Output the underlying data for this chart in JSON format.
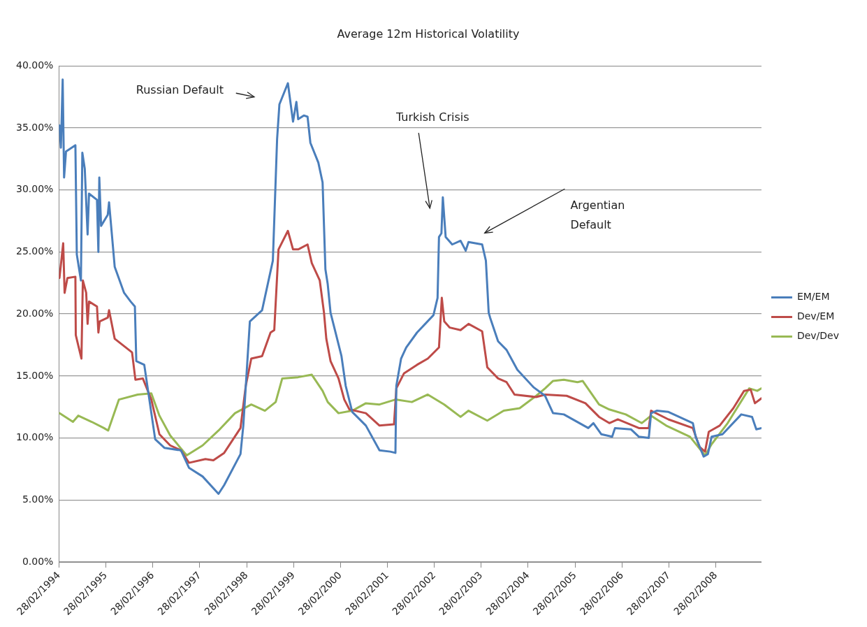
{
  "chart_data": {
    "type": "line",
    "title": "Average 12m Historical Volatility",
    "xlim": [
      "1994-02-28",
      "2009-02-17"
    ],
    "xticks": [
      {
        "value": "1994-02-28",
        "label": "28/02/1994"
      },
      {
        "value": "1995-02-28",
        "label": "28/02/1995"
      },
      {
        "value": "1996-02-28",
        "label": "28/02/1996"
      },
      {
        "value": "1997-02-28",
        "label": "28/02/1997"
      },
      {
        "value": "1998-02-28",
        "label": "28/02/1998"
      },
      {
        "value": "1999-02-28",
        "label": "28/02/1999"
      },
      {
        "value": "2000-02-28",
        "label": "28/02/2000"
      },
      {
        "value": "2001-02-28",
        "label": "28/02/2001"
      },
      {
        "value": "2002-02-28",
        "label": "28/02/2002"
      },
      {
        "value": "2003-02-28",
        "label": "28/02/2003"
      },
      {
        "value": "2004-02-28",
        "label": "28/02/2004"
      },
      {
        "value": "2005-02-28",
        "label": "28/02/2005"
      },
      {
        "value": "2006-02-28",
        "label": "28/02/2006"
      },
      {
        "value": "2007-02-28",
        "label": "28/02/2007"
      },
      {
        "value": "2008-02-28",
        "label": "28/02/2008"
      }
    ],
    "ylim": [
      0,
      40
    ],
    "yticks": [
      {
        "value": 0,
        "label": "0.00%"
      },
      {
        "value": 5,
        "label": "5.00%"
      },
      {
        "value": 10,
        "label": "10.00%"
      },
      {
        "value": 15,
        "label": "15.00%"
      },
      {
        "value": 20,
        "label": "20.00%"
      },
      {
        "value": 25,
        "label": "25.00%"
      },
      {
        "value": 30,
        "label": "30.00%"
      },
      {
        "value": 35,
        "label": "35.00%"
      },
      {
        "value": 40,
        "label": "40.00%"
      }
    ],
    "grid": "y",
    "legend": "right",
    "marker": "none",
    "line_style": "solid",
    "series": [
      {
        "name": "EM/EM",
        "color": "#4a7ebb",
        "x": [
          "1994-03-04",
          "1994-03-15",
          "1994-03-29",
          "1994-04-09",
          "1994-04-24",
          "1994-07-06",
          "1994-07-17",
          "1994-08-18",
          "1994-08-29",
          "1994-09-17",
          "1994-10-09",
          "1994-10-20",
          "1994-12-21",
          "1995-01-01",
          "1995-01-08",
          "1995-01-22",
          "1995-03-15",
          "1995-03-25",
          "1995-05-08",
          "1995-07-20",
          "1995-09-09",
          "1995-10-12",
          "1995-10-23",
          "1995-12-24",
          "1996-03-18",
          "1996-05-30",
          "1996-10-05",
          "1996-12-06",
          "1997-03-22",
          "1997-07-24",
          "1997-09-06",
          "1998-01-11",
          "1998-02-02",
          "1998-03-25",
          "1998-06-28",
          "1998-09-20",
          "1998-10-23",
          "1998-11-10",
          "1999-01-15",
          "1999-02-24",
          "1999-03-22",
          "1999-04-05",
          "1999-05-19",
          "1999-06-17",
          "1999-07-09",
          "1999-09-09",
          "1999-10-12",
          "1999-10-23",
          "1999-11-03",
          "1999-11-21",
          "1999-12-13",
          "2000-01-26",
          "2000-03-07",
          "2000-04-09",
          "2000-05-30",
          "2000-09-13",
          "2000-12-28",
          "2001-03-22",
          "2001-05-01",
          "2001-05-08",
          "2001-06-14",
          "2001-07-24",
          "2001-10-16",
          "2002-02-21",
          "2002-03-25",
          "2002-04-05",
          "2002-04-24",
          "2002-05-05",
          "2002-05-27",
          "2002-07-17",
          "2002-09-20",
          "2002-10-30",
          "2002-11-21",
          "2003-03-07",
          "2003-04-05",
          "2003-04-27",
          "2003-05-08",
          "2003-07-09",
          "2003-09-13",
          "2003-12-06",
          "2004-04-09",
          "2004-07-09",
          "2004-09-09",
          "2004-12-02",
          "2005-06-10",
          "2005-07-20",
          "2005-09-20",
          "2005-12-13",
          "2006-01-04",
          "2006-05-08",
          "2006-07-09",
          "2006-09-24",
          "2006-10-12",
          "2006-11-25",
          "2007-02-24",
          "2007-09-02",
          "2007-09-24",
          "2007-11-25",
          "2007-12-28",
          "2008-01-26",
          "2008-04-20",
          "2008-09-13",
          "2008-12-06",
          "2009-01-08",
          "2009-02-17"
        ],
        "values": [
          35.2,
          33.4,
          38.9,
          31.0,
          33.1,
          33.6,
          24.8,
          22.7,
          33.0,
          31.7,
          26.4,
          29.7,
          29.2,
          25.0,
          31.0,
          27.1,
          28.0,
          29.0,
          23.8,
          21.7,
          21.0,
          20.6,
          16.2,
          15.9,
          9.9,
          9.2,
          9.0,
          7.6,
          6.9,
          5.5,
          6.2,
          8.7,
          11.0,
          19.4,
          20.3,
          24.3,
          34.1,
          36.9,
          38.6,
          35.5,
          37.1,
          35.7,
          36.0,
          35.9,
          33.8,
          32.2,
          30.6,
          27.1,
          23.6,
          22.4,
          20.1,
          18.3,
          16.6,
          14.2,
          12.1,
          11.0,
          9.0,
          8.9,
          8.8,
          14.2,
          16.4,
          17.3,
          18.5,
          19.9,
          21.3,
          26.2,
          26.5,
          29.4,
          26.2,
          25.6,
          25.9,
          25.1,
          25.8,
          25.6,
          24.3,
          20.1,
          19.7,
          17.8,
          17.1,
          15.5,
          14.1,
          13.4,
          12.0,
          11.9,
          10.8,
          11.2,
          10.3,
          10.1,
          10.8,
          10.7,
          10.1,
          10.0,
          12.0,
          12.2,
          12.1,
          11.2,
          10.1,
          8.5,
          8.7,
          10.1,
          10.3,
          11.9,
          11.7,
          10.7,
          10.8
        ]
      },
      {
        "name": "Dev/EM",
        "color": "#be4b48",
        "x": [
          "1994-03-04",
          "1994-04-02",
          "1994-04-13",
          "1994-05-05",
          "1994-07-06",
          "1994-07-09",
          "1994-08-22",
          "1994-09-02",
          "1994-09-28",
          "1994-10-09",
          "1994-10-20",
          "1994-12-21",
          "1995-01-01",
          "1995-01-11",
          "1995-03-15",
          "1995-03-25",
          "1995-05-08",
          "1995-09-20",
          "1995-10-16",
          "1995-12-13",
          "1996-02-17",
          "1996-04-20",
          "1996-07-13",
          "1996-10-05",
          "1996-12-06",
          "1997-04-13",
          "1997-06-14",
          "1997-09-06",
          "1998-01-11",
          "1998-02-21",
          "1998-04-05",
          "1998-06-28",
          "1998-09-02",
          "1998-10-01",
          "1998-11-03",
          "1999-01-15",
          "1999-02-24",
          "1999-04-05",
          "1999-06-17",
          "1999-07-20",
          "1999-09-20",
          "1999-10-23",
          "1999-11-10",
          "1999-12-13",
          "2000-02-13",
          "2000-03-29",
          "2000-05-08",
          "2000-09-13",
          "2000-12-28",
          "2001-04-20",
          "2001-05-08",
          "2001-07-06",
          "2001-10-16",
          "2002-01-08",
          "2002-04-05",
          "2002-04-27",
          "2002-05-16",
          "2002-06-28",
          "2002-09-20",
          "2002-11-21",
          "2003-03-07",
          "2003-04-16",
          "2003-07-09",
          "2003-09-13",
          "2003-11-14",
          "2004-05-01",
          "2004-07-09",
          "2004-12-24",
          "2005-05-19",
          "2005-09-02",
          "2005-11-21",
          "2006-01-26",
          "2006-07-09",
          "2006-09-24",
          "2006-10-12",
          "2007-02-24",
          "2007-09-02",
          "2007-10-23",
          "2007-12-06",
          "2008-01-04",
          "2008-03-29",
          "2008-07-13",
          "2008-10-05",
          "2008-11-25",
          "2008-12-28",
          "2009-02-17"
        ],
        "values": [
          22.9,
          25.7,
          21.7,
          22.9,
          23.0,
          18.3,
          16.4,
          22.7,
          21.7,
          19.2,
          21.0,
          20.6,
          18.5,
          19.4,
          19.7,
          20.3,
          18.0,
          16.9,
          14.7,
          14.8,
          13.1,
          10.3,
          9.4,
          9.0,
          8.0,
          8.3,
          8.2,
          8.8,
          10.8,
          14.2,
          16.4,
          16.6,
          18.5,
          18.7,
          25.2,
          26.7,
          25.2,
          25.2,
          25.6,
          24.1,
          22.7,
          20.1,
          18.0,
          16.2,
          14.8,
          13.1,
          12.3,
          12.0,
          11.0,
          11.1,
          14.0,
          15.2,
          15.9,
          16.4,
          17.3,
          21.3,
          19.4,
          18.9,
          18.7,
          19.2,
          18.6,
          15.7,
          14.8,
          14.5,
          13.5,
          13.3,
          13.5,
          13.4,
          12.8,
          11.7,
          11.2,
          11.5,
          10.8,
          10.8,
          12.2,
          11.5,
          10.8,
          9.3,
          8.9,
          10.5,
          11.0,
          12.4,
          13.8,
          13.9,
          12.8,
          13.2
        ]
      },
      {
        "name": "Dev/Dev",
        "color": "#98b954",
        "x": [
          "1994-03-04",
          "1994-06-17",
          "1994-07-28",
          "1994-11-10",
          "1995-02-13",
          "1995-03-18",
          "1995-06-10",
          "1995-11-03",
          "1996-02-17",
          "1996-04-20",
          "1996-07-13",
          "1996-11-18",
          "1997-03-22",
          "1997-07-24",
          "1997-11-29",
          "1998-04-05",
          "1998-07-20",
          "1998-10-12",
          "1998-12-02",
          "1999-04-05",
          "1999-07-20",
          "1999-10-12",
          "1999-11-21",
          "2000-02-13",
          "2000-05-30",
          "2000-09-13",
          "2000-12-28",
          "2001-05-01",
          "2001-09-06",
          "2002-01-08",
          "2002-05-16",
          "2002-09-20",
          "2002-11-21",
          "2003-04-16",
          "2003-08-22",
          "2003-12-24",
          "2004-05-01",
          "2004-07-09",
          "2004-09-09",
          "2004-12-02",
          "2005-03-18",
          "2005-04-27",
          "2005-09-02",
          "2005-11-21",
          "2006-03-29",
          "2006-07-31",
          "2006-10-12",
          "2007-02-06",
          "2007-08-11",
          "2007-12-06",
          "2008-01-26",
          "2008-05-30",
          "2008-11-14",
          "2009-01-15",
          "2009-02-17"
        ],
        "values": [
          12.0,
          11.3,
          11.8,
          11.3,
          10.8,
          10.6,
          13.1,
          13.5,
          13.6,
          11.8,
          10.2,
          8.6,
          9.4,
          10.6,
          12.0,
          12.7,
          12.2,
          12.9,
          14.8,
          14.9,
          15.1,
          13.8,
          12.9,
          12.0,
          12.2,
          12.8,
          12.7,
          13.1,
          12.9,
          13.5,
          12.7,
          11.7,
          12.2,
          11.4,
          12.2,
          12.4,
          13.4,
          14.0,
          14.6,
          14.7,
          14.5,
          14.6,
          12.7,
          12.3,
          11.9,
          11.2,
          11.8,
          11.0,
          10.1,
          8.6,
          9.5,
          11.2,
          14.0,
          13.8,
          14.0
        ]
      }
    ],
    "annotations": [
      "Russian Default",
      "Turkish Crisis",
      "Argentian Default"
    ]
  }
}
